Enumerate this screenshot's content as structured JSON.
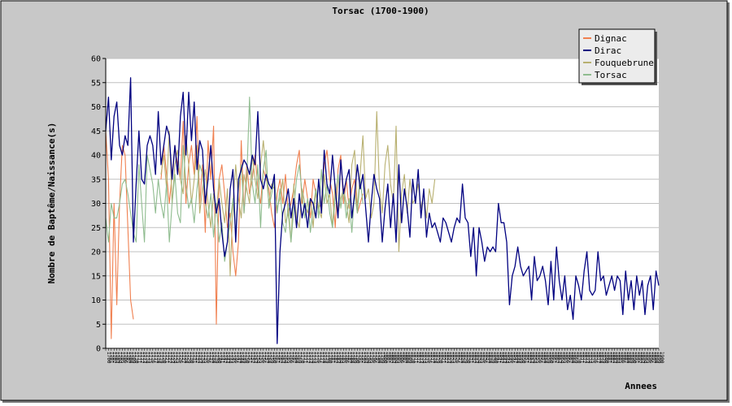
{
  "chart_data": {
    "type": "line",
    "title": "Torsac (1700-1900)",
    "xlabel": "Annees",
    "ylabel": "Nombre de Baptême/Naissance(s)",
    "ylim": [
      0,
      60
    ],
    "yticks": [
      0,
      5,
      10,
      15,
      20,
      25,
      30,
      35,
      40,
      45,
      50,
      55,
      60
    ],
    "xlim": [
      1700,
      1900
    ],
    "grid": true,
    "legend_position": "top-right",
    "colors": {
      "Dignac": "#f08050",
      "Dirac": "#000080",
      "Fouquebrune": "#b8b070",
      "Torsac": "#8fbc8f"
    },
    "series": [
      {
        "name": "Dignac",
        "x": [
          1700,
          1701,
          1702,
          1703,
          1704,
          1705,
          1706,
          1707,
          1708,
          1709,
          1710,
          1711,
          1712,
          1713,
          1714,
          1715,
          1716,
          1717,
          1718,
          1719,
          1720,
          1721,
          1722,
          1723,
          1724,
          1725,
          1726,
          1727,
          1728,
          1729,
          1730,
          1731,
          1732,
          1733,
          1734,
          1735,
          1736,
          1737,
          1738,
          1739,
          1740,
          1741,
          1742,
          1743,
          1744,
          1745,
          1746,
          1747,
          1748,
          1749,
          1750,
          1751,
          1752,
          1753,
          1754,
          1755,
          1756,
          1757,
          1758,
          1759,
          1760,
          1761,
          1762,
          1763,
          1764,
          1765,
          1766,
          1767,
          1768,
          1769,
          1770,
          1771,
          1772,
          1773,
          1774,
          1775,
          1776,
          1777,
          1778,
          1779,
          1780,
          1781,
          1782,
          1783,
          1784,
          1785,
          1786,
          1787,
          1788,
          1789,
          1790,
          1791,
          1792,
          1793
        ],
        "values": [
          45,
          35,
          2,
          30,
          9,
          30,
          42,
          40,
          25,
          10,
          6,
          null,
          null,
          null,
          null,
          null,
          null,
          null,
          null,
          null,
          35,
          42,
          36,
          30,
          36,
          42,
          38,
          35,
          47,
          30,
          38,
          42,
          36,
          48,
          30,
          38,
          24,
          43,
          35,
          46,
          5,
          35,
          38,
          32,
          25,
          28,
          20,
          15,
          22,
          43,
          28,
          38,
          32,
          35,
          40,
          33,
          30,
          37,
          35,
          33,
          28,
          25,
          32,
          35,
          30,
          36,
          28,
          30,
          33,
          38,
          41,
          30,
          35,
          31,
          27,
          35,
          32,
          29,
          30,
          38,
          41,
          35,
          32,
          25,
          37,
          40,
          30,
          35,
          29,
          33,
          35,
          28,
          30,
          32
        ]
      },
      {
        "name": "Dirac",
        "x": [
          1700,
          1701,
          1702,
          1703,
          1704,
          1705,
          1706,
          1707,
          1708,
          1709,
          1710,
          1711,
          1712,
          1713,
          1714,
          1715,
          1716,
          1717,
          1718,
          1719,
          1720,
          1721,
          1722,
          1723,
          1724,
          1725,
          1726,
          1727,
          1728,
          1729,
          1730,
          1731,
          1732,
          1733,
          1734,
          1735,
          1736,
          1737,
          1738,
          1739,
          1740,
          1741,
          1742,
          1743,
          1744,
          1745,
          1746,
          1747,
          1748,
          1749,
          1750,
          1751,
          1752,
          1753,
          1754,
          1755,
          1756,
          1757,
          1758,
          1759,
          1760,
          1761,
          1762,
          1763,
          1764,
          1765,
          1766,
          1767,
          1768,
          1769,
          1770,
          1771,
          1772,
          1773,
          1774,
          1775,
          1776,
          1777,
          1778,
          1779,
          1780,
          1781,
          1782,
          1783,
          1784,
          1785,
          1786,
          1787,
          1788,
          1789,
          1790,
          1791,
          1792,
          1793,
          1794,
          1795,
          1796,
          1797,
          1798,
          1799,
          1800,
          1801,
          1802,
          1803,
          1804,
          1805,
          1806,
          1807,
          1808,
          1809,
          1810,
          1811,
          1812,
          1813,
          1814,
          1815,
          1816,
          1817,
          1818,
          1819,
          1820,
          1821,
          1822,
          1823,
          1824,
          1825,
          1826,
          1827,
          1828,
          1829,
          1830,
          1831,
          1832,
          1833,
          1834,
          1835,
          1836,
          1837,
          1838,
          1839,
          1840,
          1841,
          1842,
          1843,
          1844,
          1845,
          1846,
          1847,
          1848,
          1849,
          1850,
          1851,
          1852,
          1853,
          1854,
          1855,
          1856,
          1857,
          1858,
          1859,
          1860,
          1861,
          1862,
          1863,
          1864,
          1865,
          1866,
          1867,
          1868,
          1869,
          1870,
          1871,
          1872,
          1873,
          1874,
          1875,
          1876,
          1877,
          1878,
          1879,
          1880,
          1881,
          1882,
          1883,
          1884,
          1885,
          1886,
          1887,
          1888,
          1889,
          1890,
          1891,
          1892,
          1893,
          1894,
          1895,
          1896,
          1897,
          1898,
          1899,
          1900
        ],
        "values": [
          45,
          52,
          39,
          48,
          51,
          42,
          40,
          44,
          42,
          56,
          22,
          34,
          45,
          35,
          34,
          42,
          44,
          42,
          36,
          49,
          38,
          42,
          46,
          44,
          35,
          42,
          36,
          48,
          53,
          40,
          53,
          43,
          51,
          37,
          43,
          41,
          30,
          35,
          42,
          33,
          28,
          31,
          24,
          19,
          22,
          33,
          37,
          22,
          35,
          37,
          39,
          38,
          36,
          40,
          38,
          49,
          35,
          33,
          36,
          34,
          33,
          36,
          1,
          20,
          28,
          30,
          33,
          27,
          31,
          25,
          32,
          27,
          30,
          25,
          31,
          30,
          27,
          35,
          28,
          41,
          34,
          32,
          40,
          33,
          27,
          39,
          32,
          35,
          37,
          27,
          32,
          38,
          33,
          36,
          29,
          22,
          30,
          36,
          33,
          31,
          22,
          29,
          34,
          25,
          32,
          22,
          38,
          26,
          33,
          29,
          23,
          35,
          30,
          37,
          27,
          33,
          23,
          28,
          25,
          26,
          24,
          22,
          27,
          26,
          24,
          22,
          25,
          27,
          26,
          34,
          27,
          26,
          19,
          25,
          15,
          25,
          22,
          18,
          21,
          20,
          21,
          20,
          30,
          26,
          26,
          22,
          9,
          15,
          17,
          21,
          17,
          15,
          16,
          17,
          10,
          19,
          14,
          15,
          17,
          14,
          9,
          18,
          10,
          21,
          14,
          10,
          15,
          8,
          11,
          6,
          15,
          13,
          10,
          16,
          20,
          12,
          11,
          12,
          20,
          14,
          15,
          11,
          13,
          15,
          12,
          15,
          14,
          7,
          16,
          10,
          14,
          8,
          15,
          11,
          14,
          7,
          13,
          15,
          8,
          16,
          13
        ]
      },
      {
        "name": "Fouquebrune",
        "x": [
          1720,
          1721,
          1722,
          1723,
          1724,
          1725,
          1726,
          1727,
          1728,
          1729,
          1730,
          1731,
          1732,
          1733,
          1734,
          1735,
          1736,
          1737,
          1738,
          1739,
          1740,
          1741,
          1742,
          1743,
          1744,
          1745,
          1746,
          1747,
          1748,
          1749,
          1750,
          1751,
          1752,
          1753,
          1754,
          1755,
          1756,
          1757,
          1758,
          1759,
          1760,
          1761,
          1762,
          1763,
          1764,
          1765,
          1766,
          1767,
          1768,
          1769,
          1770,
          1771,
          1772,
          1773,
          1774,
          1775,
          1776,
          1777,
          1778,
          1779,
          1780,
          1781,
          1782,
          1783,
          1784,
          1785,
          1786,
          1787,
          1788,
          1789,
          1790,
          1791,
          1792,
          1793,
          1794,
          1795,
          1796,
          1797,
          1798,
          1799,
          1800,
          1801,
          1802,
          1803,
          1804,
          1805,
          1806,
          1807,
          1808,
          1809,
          1810,
          1811,
          1812,
          1813,
          1814,
          1815,
          1816,
          1817,
          1818,
          1819
        ],
        "values": [
          36,
          40,
          33,
          45,
          30,
          38,
          41,
          35,
          32,
          44,
          38,
          30,
          35,
          42,
          28,
          33,
          37,
          30,
          25,
          32,
          28,
          35,
          30,
          26,
          33,
          15,
          30,
          38,
          31,
          27,
          36,
          33,
          30,
          40,
          35,
          31,
          38,
          43,
          36,
          30,
          34,
          33,
          29,
          31,
          35,
          26,
          28,
          22,
          34,
          27,
          25,
          33,
          30,
          28,
          31,
          25,
          33,
          29,
          27,
          36,
          30,
          32,
          25,
          34,
          28,
          31,
          33,
          30,
          26,
          38,
          41,
          29,
          36,
          44,
          31,
          33,
          27,
          30,
          49,
          33,
          28,
          38,
          42,
          34,
          30,
          46,
          20,
          32,
          36,
          28,
          35,
          30,
          31,
          34,
          29,
          32,
          27,
          33,
          30,
          35
        ]
      },
      {
        "name": "Torsac",
        "x": [
          1700,
          1701,
          1702,
          1703,
          1704,
          1705,
          1706,
          1707,
          1708,
          1709,
          1710,
          1711,
          1712,
          1713,
          1714,
          1715,
          1716,
          1717,
          1718,
          1719,
          1720,
          1721,
          1722,
          1723,
          1724,
          1725,
          1726,
          1727,
          1728,
          1729,
          1730,
          1731,
          1732,
          1733,
          1734,
          1735,
          1736,
          1737,
          1738,
          1739,
          1740,
          1741,
          1742,
          1743,
          1744,
          1745,
          1746,
          1747,
          1748,
          1749,
          1750,
          1751,
          1752,
          1753,
          1754,
          1755,
          1756,
          1757,
          1758,
          1759,
          1760,
          1761,
          1762,
          1763,
          1764,
          1765,
          1766,
          1767,
          1768,
          1769,
          1770,
          1771,
          1772,
          1773,
          1774,
          1775,
          1776,
          1777,
          1778,
          1779,
          1780,
          1781,
          1782,
          1783,
          1784,
          1785,
          1786,
          1787,
          1788,
          1789,
          1790,
          1791,
          1792,
          1793
        ],
        "values": [
          27,
          22,
          30,
          27,
          27,
          30,
          34,
          35,
          32,
          28,
          24,
          22,
          38,
          30,
          22,
          40,
          37,
          34,
          28,
          35,
          30,
          27,
          34,
          22,
          30,
          36,
          28,
          26,
          42,
          34,
          29,
          31,
          26,
          33,
          38,
          36,
          30,
          27,
          32,
          23,
          30,
          22,
          26,
          18,
          22,
          26,
          31,
          24,
          33,
          38,
          28,
          35,
          52,
          34,
          30,
          38,
          25,
          37,
          41,
          29,
          32,
          35,
          28,
          33,
          26,
          24,
          30,
          22,
          29,
          35,
          38,
          32,
          27,
          31,
          24,
          29,
          33,
          27,
          37,
          30,
          34,
          28,
          25,
          31,
          36,
          29,
          33,
          27,
          31,
          24,
          32,
          28,
          35,
          30
        ]
      }
    ]
  }
}
